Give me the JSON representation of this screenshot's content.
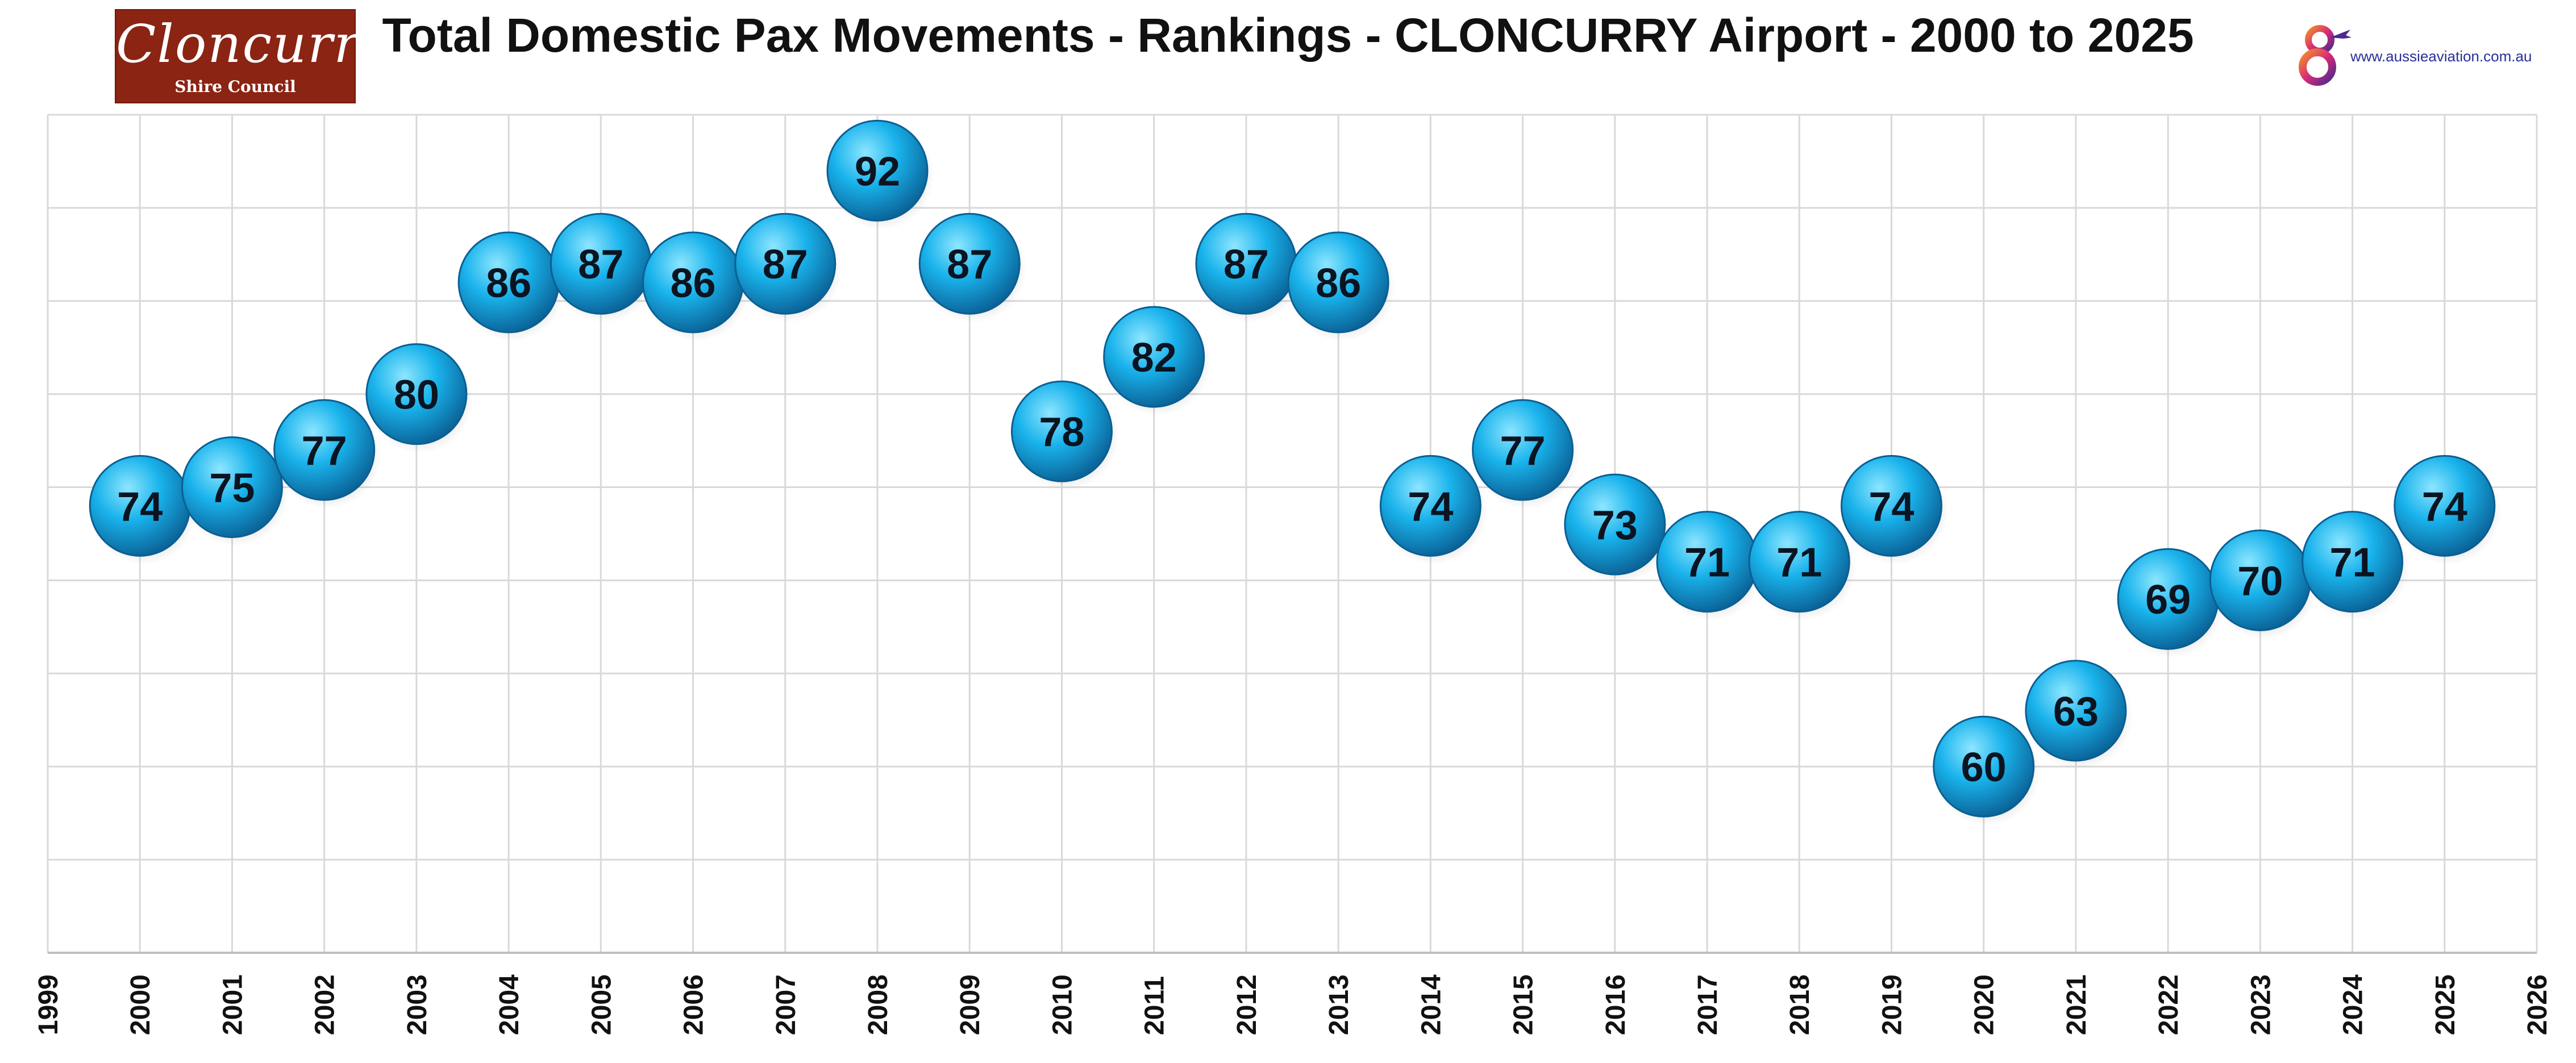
{
  "title": "Total Domestic Pax Movements - Rankings - CLONCURRY Airport - 2000 to 2025",
  "logos": {
    "left": {
      "script": "Cloncurry",
      "sub": "Shire Council"
    },
    "right": {
      "url": "www.aussieaviation.com.au"
    }
  },
  "colors": {
    "bubble_light": "#8ee6ff",
    "bubble_mid": "#19b3ec",
    "bubble_dark": "#0a5f93",
    "grid": "#d9d9d9",
    "logo_left_bg": "#8b2413"
  },
  "chart_data": {
    "type": "scatter",
    "title": "Total Domestic Pax Movements - Rankings - CLONCURRY Airport - 2000 to 2025",
    "xlabel": "",
    "ylabel": "",
    "xlim": [
      1999,
      2026
    ],
    "ylim": [
      50,
      95
    ],
    "x_ticks": [
      "1999",
      "2000",
      "2001",
      "2002",
      "2003",
      "2004",
      "2005",
      "2006",
      "2007",
      "2008",
      "2009",
      "2010",
      "2011",
      "2012",
      "2013",
      "2014",
      "2015",
      "2016",
      "2017",
      "2018",
      "2019",
      "2020",
      "2021",
      "2022",
      "2023",
      "2024",
      "2025",
      "2026"
    ],
    "y_ticks_shown": false,
    "grid": true,
    "legend": "none",
    "marker": "sphere",
    "points": [
      {
        "x": 2000,
        "y": 74
      },
      {
        "x": 2001,
        "y": 75
      },
      {
        "x": 2002,
        "y": 77
      },
      {
        "x": 2003,
        "y": 80
      },
      {
        "x": 2004,
        "y": 86
      },
      {
        "x": 2005,
        "y": 87
      },
      {
        "x": 2006,
        "y": 86
      },
      {
        "x": 2007,
        "y": 87
      },
      {
        "x": 2008,
        "y": 92
      },
      {
        "x": 2009,
        "y": 87
      },
      {
        "x": 2010,
        "y": 78
      },
      {
        "x": 2011,
        "y": 82
      },
      {
        "x": 2012,
        "y": 87
      },
      {
        "x": 2013,
        "y": 86
      },
      {
        "x": 2014,
        "y": 74
      },
      {
        "x": 2015,
        "y": 77
      },
      {
        "x": 2016,
        "y": 73
      },
      {
        "x": 2017,
        "y": 71
      },
      {
        "x": 2018,
        "y": 71
      },
      {
        "x": 2019,
        "y": 74
      },
      {
        "x": 2020,
        "y": 60
      },
      {
        "x": 2021,
        "y": 63
      },
      {
        "x": 2022,
        "y": 69
      },
      {
        "x": 2023,
        "y": 70
      },
      {
        "x": 2024,
        "y": 71
      },
      {
        "x": 2025,
        "y": 74
      }
    ]
  }
}
